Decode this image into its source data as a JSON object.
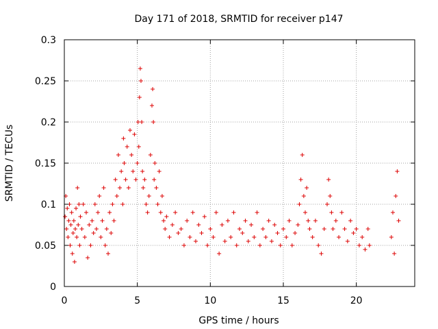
{
  "chart_data": {
    "type": "scatter",
    "title": "Day 171 of 2018, SRMTID for receiver p147",
    "xlabel": "GPS time / hours",
    "ylabel": "SRMTID / TECUs",
    "xlim": [
      0,
      24
    ],
    "ylim": [
      0,
      0.3
    ],
    "xticks": [
      0,
      5,
      10,
      15,
      20
    ],
    "xtick_labels": [
      "0",
      "5",
      "10",
      "15",
      "20"
    ],
    "yticks": [
      0,
      0.05,
      0.1,
      0.15,
      0.2,
      0.25,
      0.3
    ],
    "ytick_labels": [
      "0",
      "0.05",
      "0.1",
      "0.15",
      "0.2",
      "0.25",
      "0.3"
    ],
    "grid": true,
    "marker": "+",
    "color": "#dd0000",
    "series": [
      {
        "name": "SRMTID",
        "points": [
          [
            0.05,
            0.085
          ],
          [
            0.1,
            0.11
          ],
          [
            0.15,
            0.07
          ],
          [
            0.2,
            0.095
          ],
          [
            0.25,
            0.06
          ],
          [
            0.3,
            0.08
          ],
          [
            0.35,
            0.1
          ],
          [
            0.4,
            0.05
          ],
          [
            0.45,
            0.075
          ],
          [
            0.5,
            0.09
          ],
          [
            0.55,
            0.04
          ],
          [
            0.6,
            0.065
          ],
          [
            0.65,
            0.08
          ],
          [
            0.7,
            0.03
          ],
          [
            0.75,
            0.07
          ],
          [
            0.8,
            0.095
          ],
          [
            0.85,
            0.06
          ],
          [
            0.9,
            0.12
          ],
          [
            0.95,
            0.075
          ],
          [
            1.0,
            0.1
          ],
          [
            1.05,
            0.05
          ],
          [
            1.1,
            0.085
          ],
          [
            1.2,
            0.07
          ],
          [
            1.3,
            0.1
          ],
          [
            1.4,
            0.06
          ],
          [
            1.5,
            0.09
          ],
          [
            1.6,
            0.035
          ],
          [
            1.7,
            0.075
          ],
          [
            1.8,
            0.05
          ],
          [
            1.9,
            0.08
          ],
          [
            2.0,
            0.065
          ],
          [
            2.1,
            0.1
          ],
          [
            2.2,
            0.07
          ],
          [
            2.3,
            0.09
          ],
          [
            2.4,
            0.11
          ],
          [
            2.5,
            0.06
          ],
          [
            2.6,
            0.08
          ],
          [
            2.7,
            0.12
          ],
          [
            2.8,
            0.05
          ],
          [
            2.9,
            0.07
          ],
          [
            3.0,
            0.04
          ],
          [
            3.1,
            0.09
          ],
          [
            3.2,
            0.065
          ],
          [
            3.3,
            0.1
          ],
          [
            3.4,
            0.08
          ],
          [
            3.5,
            0.13
          ],
          [
            3.6,
            0.11
          ],
          [
            3.7,
            0.16
          ],
          [
            3.8,
            0.12
          ],
          [
            3.9,
            0.14
          ],
          [
            4.0,
            0.1
          ],
          [
            4.05,
            0.18
          ],
          [
            4.1,
            0.15
          ],
          [
            4.2,
            0.13
          ],
          [
            4.3,
            0.17
          ],
          [
            4.4,
            0.12
          ],
          [
            4.5,
            0.19
          ],
          [
            4.6,
            0.16
          ],
          [
            4.7,
            0.14
          ],
          [
            4.8,
            0.185
          ],
          [
            4.9,
            0.13
          ],
          [
            5.0,
            0.15
          ],
          [
            5.05,
            0.2
          ],
          [
            5.1,
            0.17
          ],
          [
            5.15,
            0.23
          ],
          [
            5.2,
            0.265
          ],
          [
            5.25,
            0.25
          ],
          [
            5.3,
            0.2
          ],
          [
            5.35,
            0.14
          ],
          [
            5.4,
            0.12
          ],
          [
            5.5,
            0.13
          ],
          [
            5.6,
            0.1
          ],
          [
            5.7,
            0.09
          ],
          [
            5.8,
            0.11
          ],
          [
            5.9,
            0.16
          ],
          [
            6.0,
            0.22
          ],
          [
            6.05,
            0.24
          ],
          [
            6.1,
            0.2
          ],
          [
            6.15,
            0.13
          ],
          [
            6.2,
            0.15
          ],
          [
            6.3,
            0.12
          ],
          [
            6.4,
            0.1
          ],
          [
            6.5,
            0.14
          ],
          [
            6.6,
            0.09
          ],
          [
            6.7,
            0.11
          ],
          [
            6.8,
            0.08
          ],
          [
            6.9,
            0.07
          ],
          [
            7.0,
            0.085
          ],
          [
            7.2,
            0.06
          ],
          [
            7.4,
            0.075
          ],
          [
            7.6,
            0.09
          ],
          [
            7.8,
            0.065
          ],
          [
            8.0,
            0.07
          ],
          [
            8.2,
            0.05
          ],
          [
            8.4,
            0.08
          ],
          [
            8.6,
            0.06
          ],
          [
            8.8,
            0.09
          ],
          [
            9.0,
            0.055
          ],
          [
            9.2,
            0.075
          ],
          [
            9.4,
            0.065
          ],
          [
            9.6,
            0.085
          ],
          [
            9.8,
            0.05
          ],
          [
            10.0,
            0.07
          ],
          [
            10.2,
            0.06
          ],
          [
            10.4,
            0.09
          ],
          [
            10.6,
            0.04
          ],
          [
            10.8,
            0.075
          ],
          [
            11.0,
            0.055
          ],
          [
            11.2,
            0.08
          ],
          [
            11.4,
            0.06
          ],
          [
            11.6,
            0.09
          ],
          [
            11.8,
            0.05
          ],
          [
            12.0,
            0.07
          ],
          [
            12.2,
            0.065
          ],
          [
            12.4,
            0.08
          ],
          [
            12.6,
            0.055
          ],
          [
            12.8,
            0.075
          ],
          [
            13.0,
            0.06
          ],
          [
            13.2,
            0.09
          ],
          [
            13.4,
            0.05
          ],
          [
            13.6,
            0.07
          ],
          [
            13.8,
            0.06
          ],
          [
            14.0,
            0.08
          ],
          [
            14.2,
            0.055
          ],
          [
            14.4,
            0.075
          ],
          [
            14.6,
            0.065
          ],
          [
            14.8,
            0.05
          ],
          [
            15.0,
            0.07
          ],
          [
            15.2,
            0.06
          ],
          [
            15.4,
            0.08
          ],
          [
            15.6,
            0.05
          ],
          [
            15.8,
            0.065
          ],
          [
            16.0,
            0.075
          ],
          [
            16.1,
            0.1
          ],
          [
            16.2,
            0.13
          ],
          [
            16.3,
            0.16
          ],
          [
            16.4,
            0.11
          ],
          [
            16.5,
            0.09
          ],
          [
            16.6,
            0.12
          ],
          [
            16.7,
            0.08
          ],
          [
            16.8,
            0.07
          ],
          [
            17.0,
            0.06
          ],
          [
            17.2,
            0.08
          ],
          [
            17.4,
            0.05
          ],
          [
            17.6,
            0.04
          ],
          [
            17.8,
            0.07
          ],
          [
            18.0,
            0.1
          ],
          [
            18.1,
            0.13
          ],
          [
            18.2,
            0.11
          ],
          [
            18.3,
            0.09
          ],
          [
            18.4,
            0.07
          ],
          [
            18.6,
            0.08
          ],
          [
            18.8,
            0.06
          ],
          [
            19.0,
            0.09
          ],
          [
            19.2,
            0.07
          ],
          [
            19.4,
            0.055
          ],
          [
            19.6,
            0.08
          ],
          [
            19.8,
            0.065
          ],
          [
            20.0,
            0.07
          ],
          [
            20.2,
            0.05
          ],
          [
            20.4,
            0.06
          ],
          [
            20.6,
            0.045
          ],
          [
            20.8,
            0.07
          ],
          [
            20.9,
            0.05
          ],
          [
            22.4,
            0.06
          ],
          [
            22.5,
            0.09
          ],
          [
            22.6,
            0.04
          ],
          [
            22.7,
            0.11
          ],
          [
            22.8,
            0.14
          ],
          [
            22.9,
            0.08
          ]
        ]
      }
    ]
  }
}
